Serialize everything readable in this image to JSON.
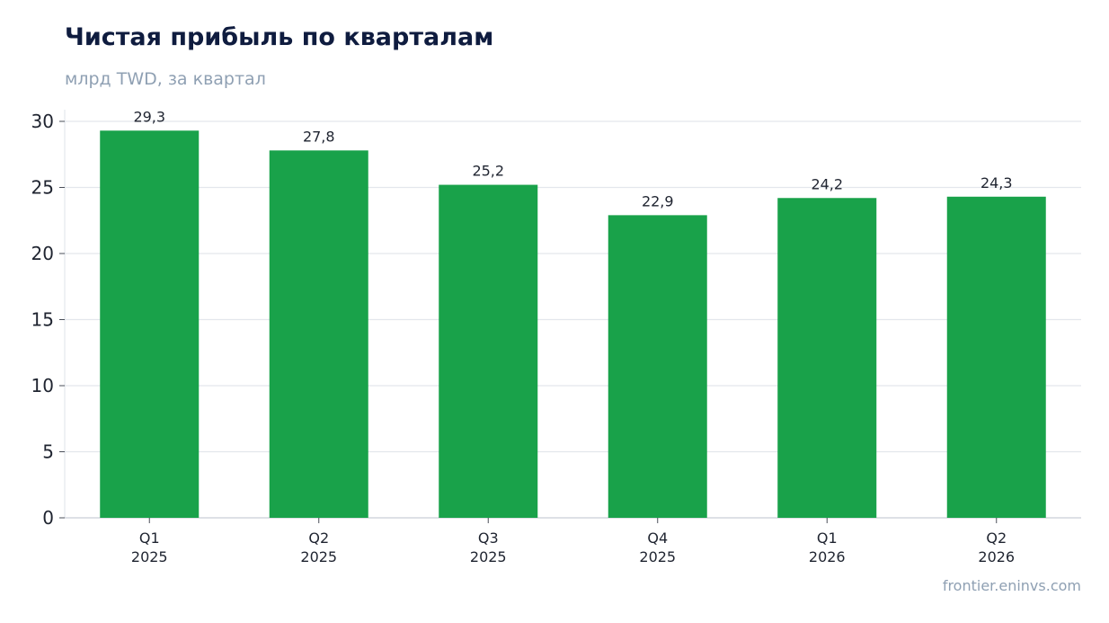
{
  "chart_data": {
    "type": "bar",
    "title": "Чистая прибыль по кварталам",
    "subtitle": "млрд TWD, за квартал",
    "categories": [
      [
        "Q1",
        "2025"
      ],
      [
        "Q2",
        "2025"
      ],
      [
        "Q3",
        "2025"
      ],
      [
        "Q4",
        "2025"
      ],
      [
        "Q1",
        "2026"
      ],
      [
        "Q2",
        "2026"
      ]
    ],
    "values": [
      29.3,
      27.8,
      25.2,
      22.9,
      24.2,
      24.3
    ],
    "value_labels": [
      "29,3",
      "27,8",
      "25,2",
      "22,9",
      "24,2",
      "24,3"
    ],
    "ylim": [
      0,
      30
    ],
    "yticks": [
      0,
      5,
      10,
      15,
      20,
      25,
      30
    ],
    "grid": true,
    "bar_color": "#19a24a",
    "xlabel": "",
    "ylabel": ""
  },
  "source": "frontier.eninvs.com"
}
